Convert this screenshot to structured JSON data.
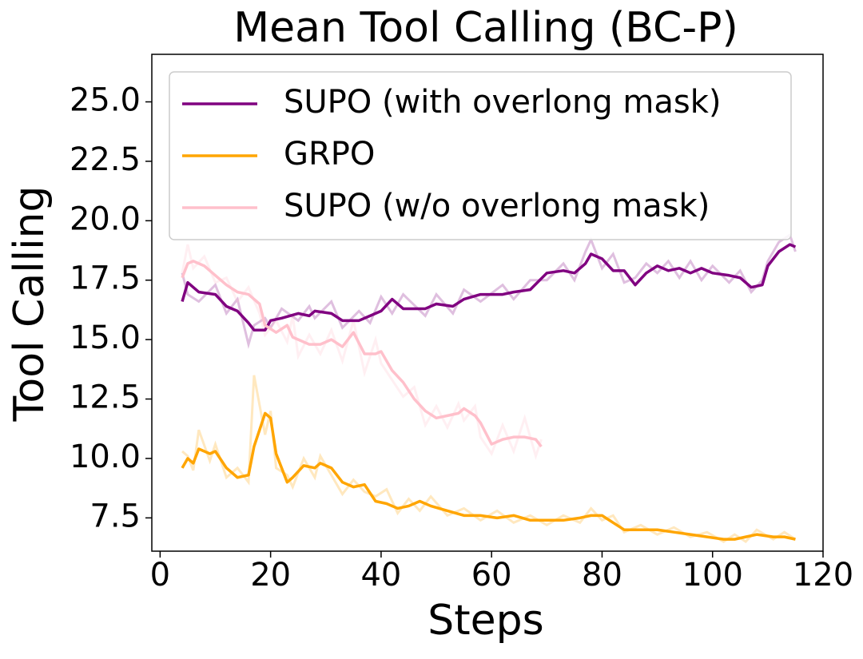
{
  "chart_data": {
    "type": "line",
    "title": "Mean Tool Calling (BC-P)",
    "x_label": "Steps",
    "y_label": "Tool Calling",
    "xlim": [
      -1.5,
      120
    ],
    "ylim": [
      6.1,
      27
    ],
    "xticks": [
      0,
      20,
      40,
      60,
      80,
      100,
      120
    ],
    "yticks": [
      7.5,
      {
        "value": 10,
        "label": "10.0"
      },
      12.5,
      {
        "value": 15,
        "label": "15.0"
      },
      17.5,
      {
        "value": 20,
        "label": "20.0"
      },
      22.5,
      {
        "value": 25,
        "label": "25.0"
      }
    ],
    "legend": "upper left",
    "series": [
      {
        "name": "SUPO (with overlong mask)",
        "color": "#800080",
        "x": [
          4,
          5,
          7,
          10,
          12,
          14,
          16,
          17,
          19,
          20,
          22,
          25,
          27,
          28,
          31,
          33,
          36,
          38,
          40,
          42,
          44,
          48,
          50,
          53,
          55,
          58,
          62,
          64,
          67,
          70,
          73,
          75,
          77,
          78,
          80,
          82,
          84,
          86,
          88,
          90,
          92,
          94,
          96,
          98,
          100,
          103,
          105,
          107,
          109,
          110,
          112,
          114,
          115
        ],
        "values": [
          16.6,
          17.4,
          17.0,
          16.9,
          16.4,
          16.2,
          15.7,
          15.4,
          15.4,
          15.8,
          15.9,
          16.1,
          16.0,
          16.2,
          16.1,
          15.8,
          15.8,
          16.0,
          16.2,
          16.7,
          16.3,
          16.3,
          16.5,
          16.4,
          16.7,
          16.9,
          16.9,
          17.0,
          17.1,
          17.8,
          17.9,
          17.8,
          18.2,
          18.6,
          18.4,
          17.9,
          17.9,
          17.3,
          17.8,
          18.1,
          17.9,
          18.0,
          17.8,
          18.0,
          17.8,
          17.7,
          17.6,
          17.2,
          17.3,
          18.1,
          18.7,
          19.0,
          18.9
        ],
        "raw_values": [
          17.8,
          16.9,
          16.6,
          17.3,
          16.1,
          16.7,
          14.8,
          15.6,
          15.9,
          15.5,
          16.3,
          15.8,
          16.4,
          15.9,
          16.6,
          15.5,
          16.2,
          15.7,
          16.8,
          16.1,
          16.9,
          16.0,
          16.9,
          16.1,
          17.1,
          16.6,
          17.3,
          16.7,
          17.5,
          17.5,
          18.2,
          17.5,
          18.7,
          19.2,
          18.0,
          18.6,
          17.4,
          17.6,
          18.2,
          17.8,
          18.3,
          17.6,
          18.3,
          17.5,
          18.1,
          17.4,
          17.9,
          17.0,
          17.5,
          18.3,
          19.1,
          19.4,
          18.7
        ]
      },
      {
        "name": "GRPO",
        "color": "#ffa500",
        "x": [
          4,
          5,
          6,
          7,
          9,
          10,
          12,
          14,
          16,
          17,
          19,
          20,
          21,
          23,
          24,
          26,
          28,
          29,
          31,
          33,
          35,
          37,
          39,
          41,
          43,
          45,
          47,
          49,
          52,
          55,
          58,
          61,
          64,
          67,
          70,
          73,
          76,
          78,
          80,
          82,
          84,
          87,
          90,
          93,
          96,
          99,
          102,
          104,
          106,
          108,
          111,
          113,
          115
        ],
        "values": [
          9.6,
          10.0,
          9.8,
          10.4,
          10.2,
          10.3,
          9.6,
          9.2,
          9.3,
          10.5,
          11.9,
          11.7,
          10.2,
          9.0,
          9.2,
          9.7,
          9.6,
          9.8,
          9.6,
          9.0,
          8.8,
          8.9,
          8.2,
          8.1,
          7.9,
          8.0,
          8.2,
          8.0,
          7.8,
          7.6,
          7.6,
          7.5,
          7.6,
          7.4,
          7.4,
          7.4,
          7.5,
          7.6,
          7.6,
          7.3,
          7.0,
          7.0,
          7.0,
          6.9,
          6.8,
          6.7,
          6.6,
          6.6,
          6.7,
          6.8,
          6.7,
          6.7,
          6.6
        ],
        "raw_values": [
          10.3,
          10.1,
          9.5,
          11.2,
          9.9,
          10.6,
          9.2,
          9.6,
          9.0,
          13.5,
          11.0,
          12.0,
          9.6,
          9.3,
          8.8,
          10.0,
          9.2,
          10.1,
          9.3,
          8.5,
          9.1,
          8.6,
          8.4,
          8.7,
          7.7,
          8.3,
          7.8,
          8.4,
          7.6,
          7.9,
          7.4,
          7.8,
          7.3,
          7.6,
          7.2,
          7.6,
          7.3,
          7.9,
          7.4,
          7.6,
          6.9,
          7.2,
          6.8,
          7.1,
          6.7,
          6.9,
          6.5,
          6.8,
          6.5,
          7.0,
          6.6,
          6.9,
          6.6
        ]
      },
      {
        "name": "SUPO (w/o overlong mask)",
        "color": "#ffc0cb",
        "x": [
          4,
          5,
          6,
          8,
          10,
          12,
          14,
          16,
          18,
          19,
          21,
          23,
          24,
          25,
          27,
          29,
          31,
          33,
          35,
          37,
          39,
          40,
          42,
          44,
          46,
          48,
          50,
          52,
          54,
          55,
          57,
          58,
          60,
          62,
          64,
          66,
          68,
          69
        ],
        "values": [
          17.6,
          18.2,
          18.3,
          18.1,
          17.7,
          17.3,
          17.0,
          16.9,
          16.5,
          15.6,
          15.3,
          15.6,
          15.1,
          15.0,
          14.8,
          14.8,
          15.0,
          14.7,
          15.3,
          14.4,
          14.4,
          14.5,
          13.7,
          13.2,
          12.5,
          12.0,
          11.7,
          11.8,
          11.9,
          12.1,
          11.8,
          11.5,
          10.6,
          10.8,
          10.9,
          10.9,
          10.8,
          10.5
        ],
        "raw_values": [
          17.8,
          19.0,
          18.0,
          18.5,
          17.4,
          17.6,
          16.6,
          17.2,
          16.1,
          15.2,
          15.8,
          14.9,
          16.0,
          14.3,
          15.2,
          14.4,
          15.4,
          14.1,
          15.8,
          13.6,
          15.0,
          14.0,
          13.3,
          12.6,
          13.0,
          11.4,
          12.2,
          11.3,
          12.3,
          11.6,
          12.2,
          10.9,
          10.2,
          11.4,
          10.3,
          11.7,
          10.1,
          10.8
        ]
      }
    ]
  }
}
